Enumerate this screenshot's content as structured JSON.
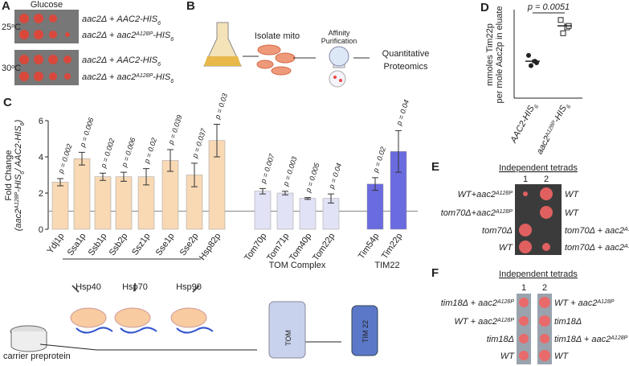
{
  "panel_a": {
    "label": "A",
    "medium": "Glucose",
    "temps": [
      [
        {
          "text": "25"
        },
        {
          "sup": "o"
        },
        {
          "text": "C"
        }
      ],
      [
        {
          "text": "30"
        },
        {
          "sup": "o"
        },
        {
          "text": "C"
        }
      ]
    ],
    "strains": [
      [
        {
          "text": "aac2Δ + AAC2-HIS"
        },
        {
          "sub": "6"
        }
      ],
      [
        {
          "text": "aac2Δ + aac2"
        },
        {
          "sup": "A128P"
        },
        {
          "text": "-HIS"
        },
        {
          "sub": "6"
        }
      ]
    ]
  },
  "panel_b": {
    "label": "B",
    "steps": [
      "Isolate mito",
      "Affinity",
      "Purification",
      "Quantitative",
      "Proteomics"
    ]
  },
  "panel_c": {
    "label": "C",
    "groups": [
      "Hsp40",
      "Hsp70",
      "Hsp90",
      "TOM Complex",
      "TIM22"
    ],
    "icons": [
      "TOM",
      "TIM 22"
    ],
    "substrate": "carrier preprotein"
  },
  "panel_d": {
    "label": "D"
  },
  "panel_e": {
    "label": "E",
    "title": "Independent tetrads",
    "columns": [
      "1",
      "2"
    ],
    "left": [
      [
        {
          "text": "WT+aac2"
        },
        {
          "sup": "A128P"
        }
      ],
      [
        {
          "text": "tom70Δ+aac2"
        },
        {
          "sup": "A128P"
        }
      ],
      [
        {
          "text": "tom70Δ"
        }
      ],
      [
        {
          "text": "WT"
        }
      ]
    ],
    "right": [
      [
        {
          "text": "WT"
        }
      ],
      [
        {
          "text": "WT"
        }
      ],
      [
        {
          "text": "tom70Δ + aac2"
        },
        {
          "sup": "A128P"
        }
      ],
      [
        {
          "text": "tom70Δ + aac2"
        },
        {
          "sup": "A128P"
        }
      ]
    ]
  },
  "panel_f": {
    "label": "F",
    "title": "Independent tetrads",
    "columns": [
      "1",
      "2"
    ],
    "left": [
      [
        {
          "text": "tim18Δ + aac2"
        },
        {
          "sup": "A128P"
        }
      ],
      [
        {
          "text": "WT + aac2"
        },
        {
          "sup": "A128P"
        }
      ],
      [
        {
          "text": "tim18Δ"
        }
      ],
      [
        {
          "text": "WT"
        }
      ]
    ],
    "right": [
      [
        {
          "text": "WT + aac2"
        },
        {
          "sup": "A128P"
        }
      ],
      [
        {
          "text": "tim18Δ"
        }
      ],
      [
        {
          "text": "tim18Δ + aac2"
        },
        {
          "sup": "A128P"
        }
      ],
      [
        {
          "text": "WT"
        }
      ]
    ]
  },
  "chart_data": [
    {
      "type": "bar",
      "y_label": [
        [
          {
            "text": "Fold Change"
          }
        ],
        [
          {
            "text": "(aac2"
          },
          {
            "sup": "A128P"
          },
          {
            "text": "-HIS"
          },
          {
            "sub": "6"
          },
          {
            "text": "/ AAC2-HIS"
          },
          {
            "sub": "6"
          },
          {
            "text": ")"
          }
        ]
      ],
      "categories": [
        "Ydj1p",
        "Ssa1p",
        "Ssb1p",
        "Ssb2p",
        "Ssz1p",
        "Sse1p",
        "Sse2p",
        "Hsp82p",
        "Tom70p",
        "Tom71p",
        "Tom40p",
        "Tom22p",
        "Tim54p",
        "Tim22p"
      ],
      "values": [
        2.6,
        3.9,
        2.9,
        2.9,
        2.9,
        3.8,
        3.0,
        4.9,
        2.1,
        2.0,
        1.7,
        1.7,
        2.5,
        4.3
      ],
      "errors": [
        0.2,
        0.35,
        0.2,
        0.25,
        0.45,
        0.6,
        0.65,
        0.9,
        0.15,
        0.1,
        0.05,
        0.25,
        0.35,
        1.15
      ],
      "value_labels": [
        "p = 0.002",
        "p = 0.006",
        "p = 0.002",
        "p = 0.006",
        "p = 0.02",
        "p = 0.039",
        "p = 0.037",
        "p = 0.03",
        "p = 0.007",
        "p = 0.003",
        "p = 0.005",
        "p = 0.04",
        "p = 0.02",
        "p = 0.04"
      ],
      "colors": [
        "#f8d9b4",
        "#f8d9b4",
        "#f8d9b4",
        "#f8d9b4",
        "#f8d9b4",
        "#f8d9b4",
        "#f8d9b4",
        "#f8d9b4",
        "#e2e2f6",
        "#e2e2f6",
        "#e2e2f6",
        "#e2e2f6",
        "#6b6be0",
        "#6b6be0"
      ],
      "reference": 1,
      "ylim": [
        0,
        6
      ],
      "yticks": [
        0,
        2,
        4,
        6
      ]
    },
    {
      "type": "scatter",
      "y_label": [
        "mmoles Tim22p",
        "per mole Aac2p in eluate"
      ],
      "categories": [
        [
          {
            "text": "AAC2-HIS"
          },
          {
            "sub": "6"
          }
        ],
        [
          {
            "text": "aac2"
          },
          {
            "sup": "A128P"
          },
          {
            "text": "-HIS"
          },
          {
            "sub": "6"
          }
        ]
      ],
      "series": [
        {
          "values": [
            2.9,
            2.5,
            2.2,
            2.4
          ],
          "mean": 2.5,
          "error": 0.15
        },
        {
          "values": [
            5.3,
            4.8,
            4.4,
            4.9
          ],
          "mean": 4.9,
          "error": 0.2
        }
      ],
      "annotation": "p = 0.0051",
      "ylim": [
        0,
        6
      ]
    }
  ]
}
